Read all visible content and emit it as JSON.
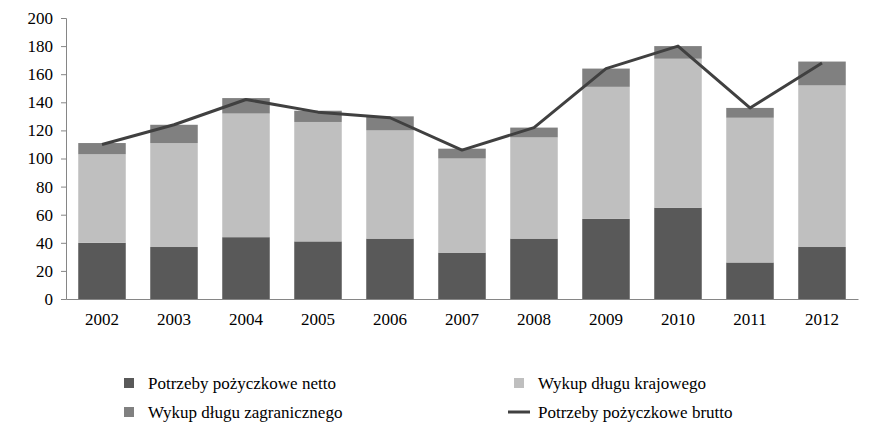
{
  "chart_data": {
    "type": "bar",
    "stacked": true,
    "grid": false,
    "legend": "bottom",
    "categories": [
      "2002",
      "2003",
      "2004",
      "2005",
      "2006",
      "2007",
      "2008",
      "2009",
      "2010",
      "2011",
      "2012"
    ],
    "ylim": [
      0,
      200
    ],
    "yticks": [
      0,
      20,
      40,
      60,
      80,
      100,
      120,
      140,
      160,
      180,
      200
    ],
    "series": [
      {
        "name": "Potrzeby pożyczkowe netto",
        "type": "bar",
        "color": "#595959",
        "values": [
          40,
          37,
          44,
          41,
          43,
          33,
          43,
          57,
          65,
          26,
          37
        ]
      },
      {
        "name": "Wykup  długu krajowego",
        "type": "bar",
        "color": "#bfbfbf",
        "values": [
          63,
          74,
          88,
          85,
          77,
          67,
          72,
          94,
          106,
          103,
          115
        ]
      },
      {
        "name": "Wykup  długu zagranicznego",
        "type": "bar",
        "color": "#808080",
        "values": [
          8,
          13,
          11,
          8,
          10,
          7,
          7,
          13,
          9,
          7,
          17
        ]
      },
      {
        "name": "Potrzeby pożyczkowe brutto",
        "type": "line",
        "color": "#404040",
        "values": [
          110,
          124,
          142,
          133,
          129,
          106,
          122,
          164,
          180,
          136,
          168
        ]
      }
    ]
  }
}
